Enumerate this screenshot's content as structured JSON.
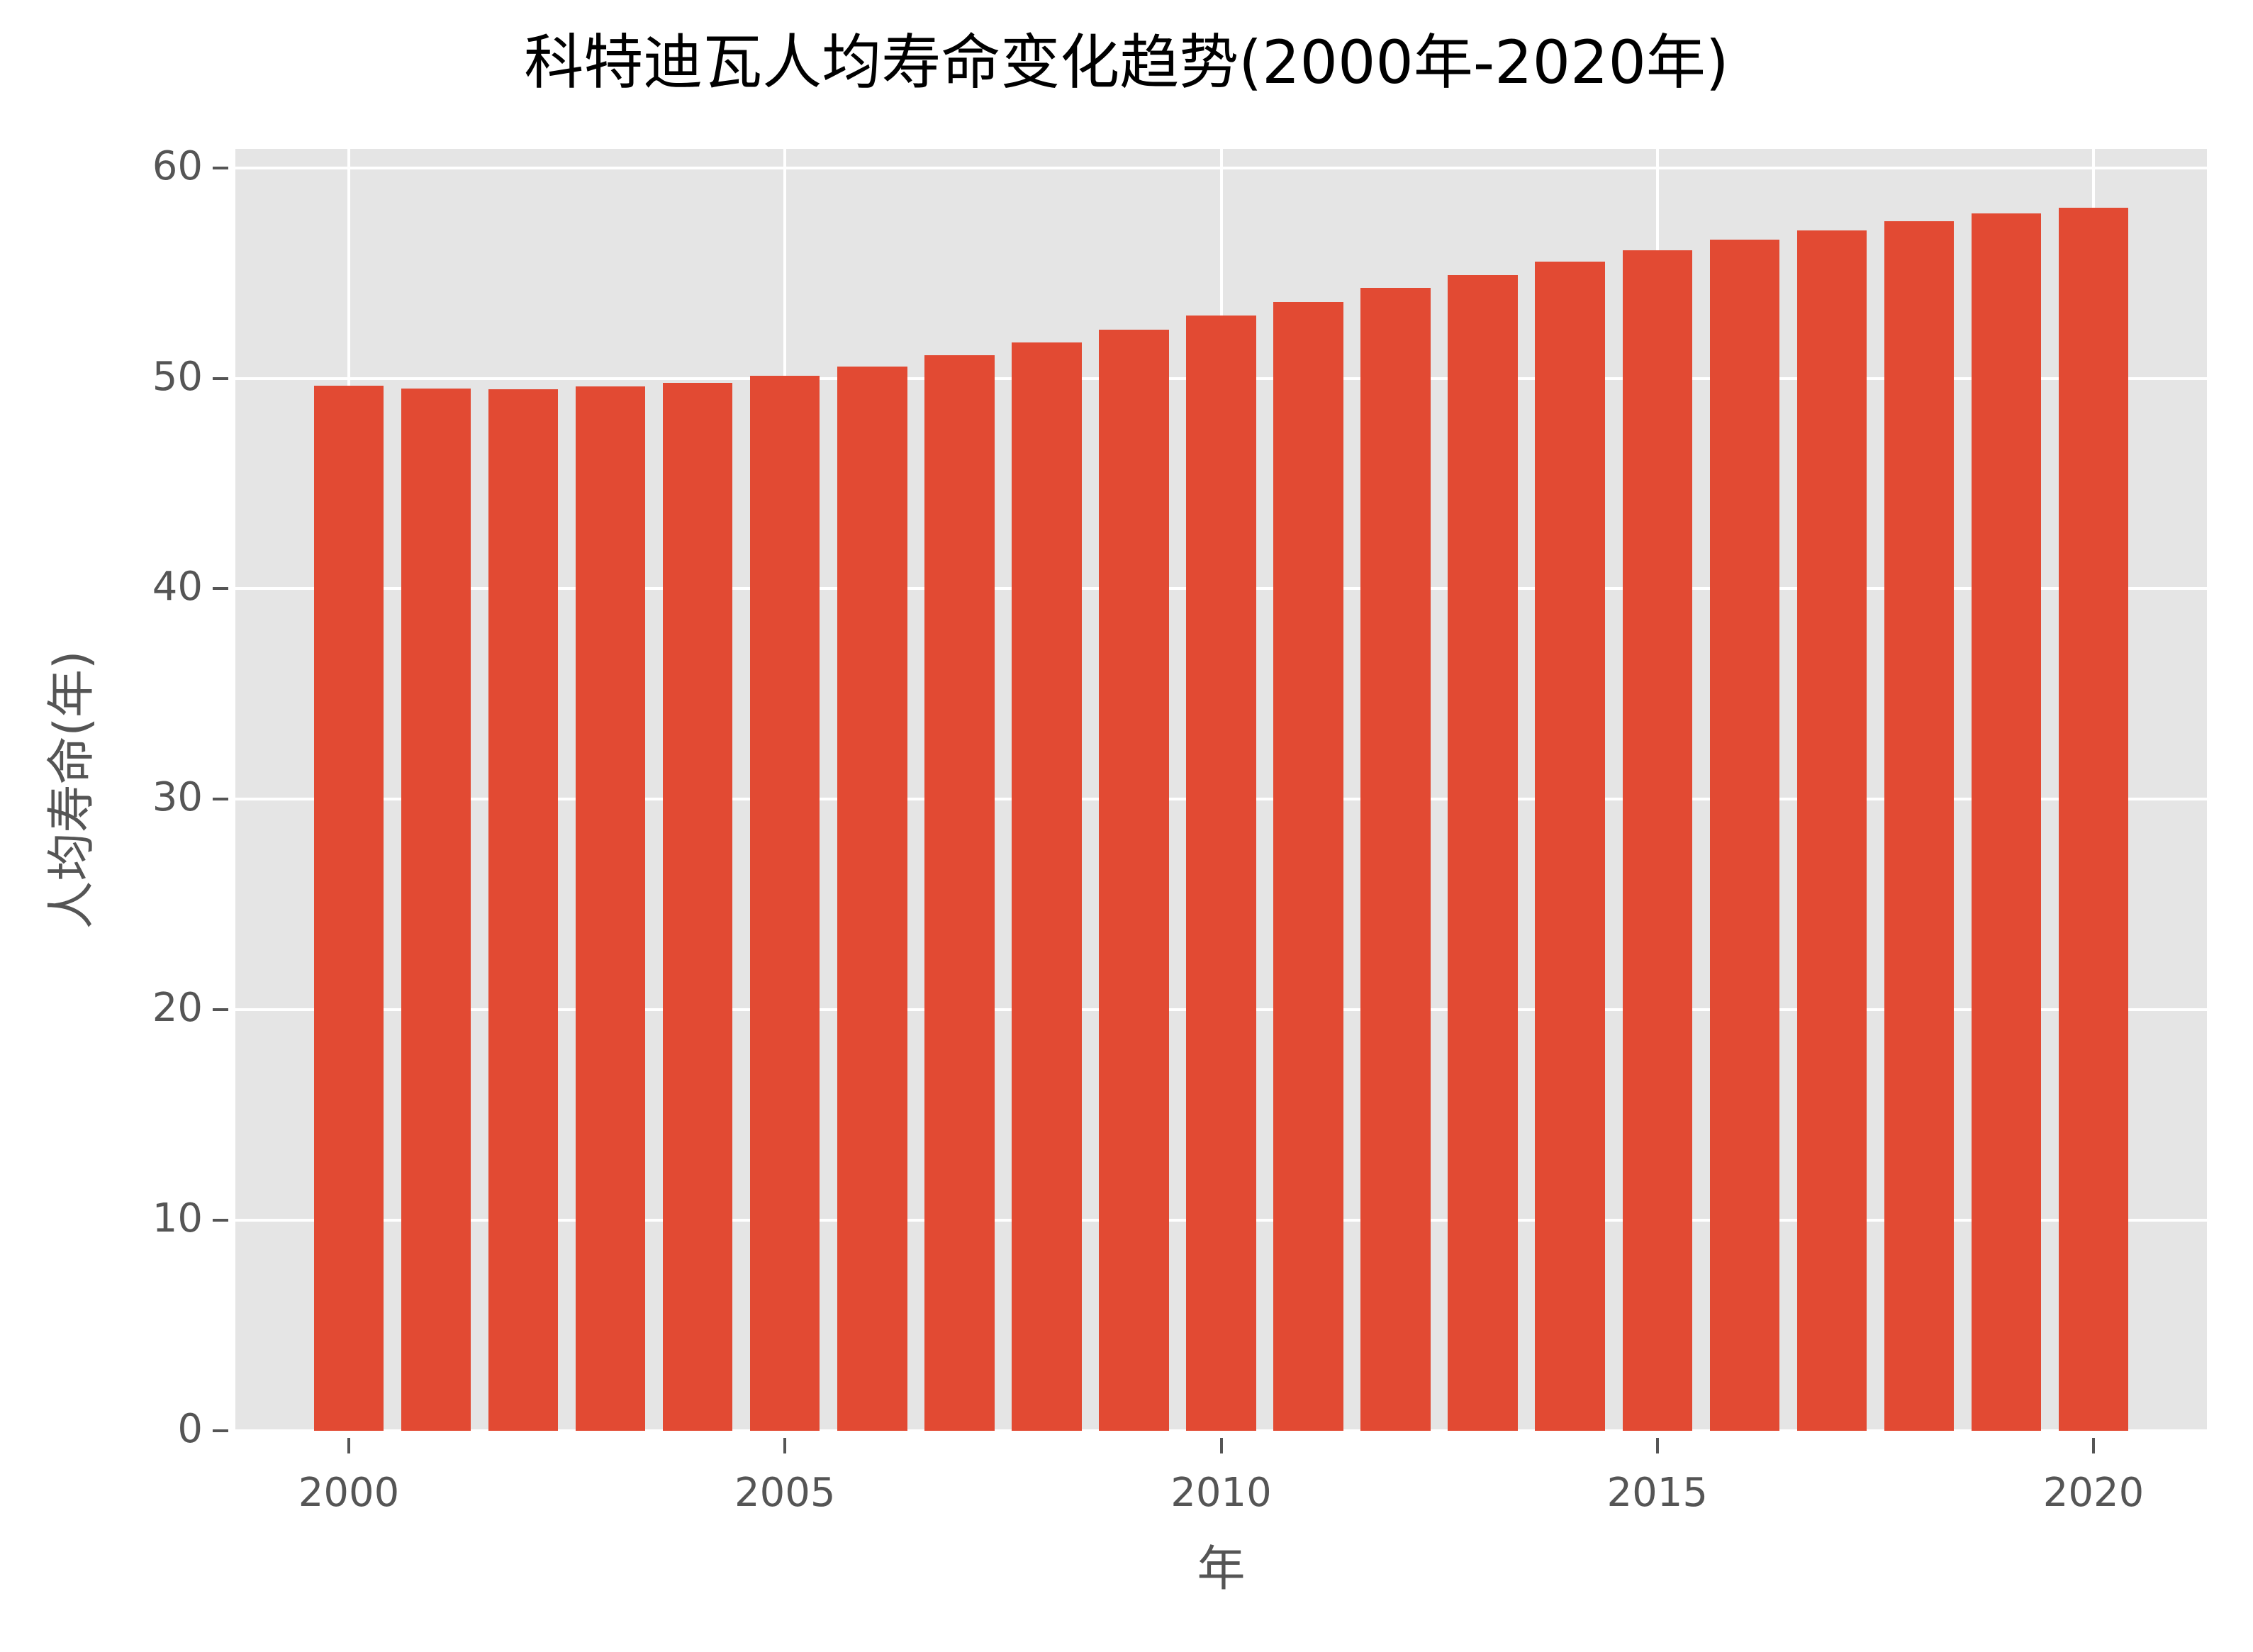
{
  "chart_data": {
    "type": "bar",
    "title": "科特迪瓦人均寿命变化趋势(2000年-2020年)",
    "xlabel": "年",
    "ylabel": "人均寿命(年)",
    "categories": [
      2000,
      2001,
      2002,
      2003,
      2004,
      2005,
      2006,
      2007,
      2008,
      2009,
      2010,
      2011,
      2012,
      2013,
      2014,
      2015,
      2016,
      2017,
      2018,
      2019,
      2020
    ],
    "values": [
      49.66,
      49.53,
      49.49,
      49.6,
      49.8,
      50.13,
      50.57,
      51.11,
      51.72,
      52.32,
      53.0,
      53.64,
      54.31,
      54.92,
      55.53,
      56.1,
      56.6,
      57.04,
      57.45,
      57.82,
      58.12
    ],
    "x_ticks": [
      "2000",
      "2005",
      "2010",
      "2015",
      "2020"
    ],
    "x_tick_values": [
      2000,
      2005,
      2010,
      2015,
      2020
    ],
    "y_ticks": [
      "0",
      "10",
      "20",
      "30",
      "40",
      "50",
      "60"
    ],
    "y_tick_values": [
      0,
      10,
      20,
      30,
      40,
      50,
      60
    ],
    "ylim": [
      0,
      60.9
    ],
    "xlim": [
      1998.7,
      2021.3
    ],
    "grid": true,
    "legend": null,
    "colors": {
      "bar": "#E24A33",
      "plot_background": "#E5E5E5",
      "grid": "#FFFFFF",
      "tick_text": "#555555",
      "title_text": "#000000"
    }
  }
}
